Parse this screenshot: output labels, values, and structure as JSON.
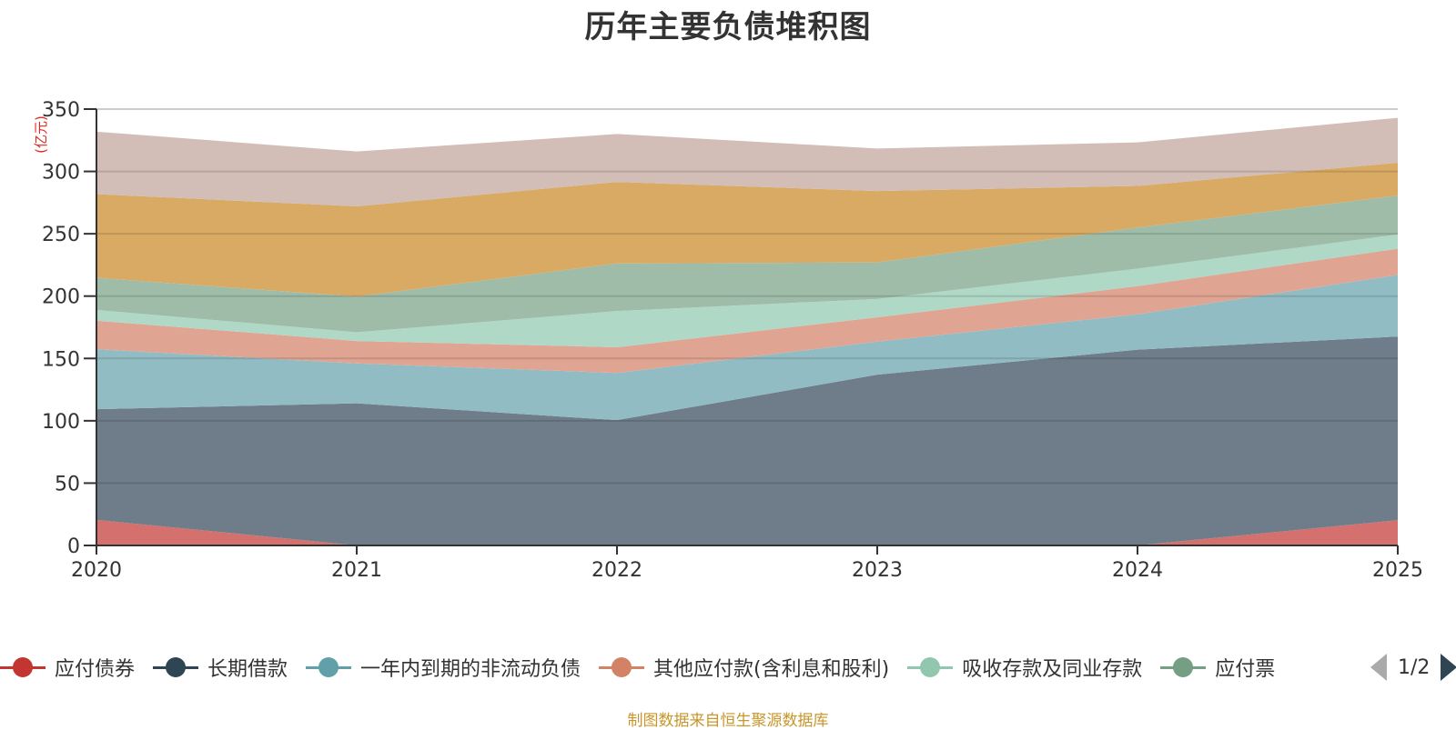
{
  "title": "历年主要负债堆积图",
  "source_note": "制图数据来自恒生聚源数据库",
  "legend_pager": {
    "text": "1/2",
    "prev_icon": "triangle-left-icon",
    "next_icon": "triangle-right-icon"
  },
  "chart_data": {
    "type": "area",
    "stacked": true,
    "title": "历年主要负债堆积图",
    "xlabel": "",
    "ylabel": "(亿元)",
    "categories": [
      "2020",
      "2021",
      "2022",
      "2023",
      "2024",
      "2025"
    ],
    "y_ticks": [
      "0",
      "50",
      "100",
      "150",
      "200",
      "250",
      "300",
      "350"
    ],
    "ylim": [
      0,
      350
    ],
    "grid": true,
    "legend_position": "bottom",
    "legend_page": "1/2",
    "series": [
      {
        "name": "应付债券",
        "color": "#c23531",
        "fill": "#d4706e",
        "legend_visible": true,
        "values": [
          20.5,
          0,
          0,
          0,
          0,
          20.3
        ]
      },
      {
        "name": "长期借款",
        "color": "#2f4554",
        "fill": "#6e7d89",
        "legend_visible": true,
        "values": [
          88.8,
          114.0,
          100.5,
          137.0,
          157.0,
          147.3
        ]
      },
      {
        "name": "一年内到期的非流动负债",
        "color": "#61a0a8",
        "fill": "#92bcc3",
        "legend_visible": true,
        "values": [
          48.1,
          32.0,
          37.9,
          26.5,
          28.4,
          49.4
        ]
      },
      {
        "name": "其他应付款(含利息和股利)",
        "color": "#d48265",
        "fill": "#e0a592",
        "legend_visible": true,
        "values": [
          22.9,
          18.0,
          20.6,
          19.5,
          22.6,
          21.0
        ]
      },
      {
        "name": "吸收存款及同业存款",
        "color": "#91c7ae",
        "fill": "#b0d8c7",
        "legend_visible": true,
        "values": [
          8.6,
          7.0,
          29.0,
          14.7,
          14.0,
          11.4
        ]
      },
      {
        "name": "应付票",
        "color": "#749f83",
        "fill": "#9fbca9",
        "legend_visible": true,
        "values": [
          25.8,
          28.6,
          38.2,
          29.3,
          33.0,
          31.2
        ]
      },
      {
        "name": "",
        "color": "#ca8622",
        "fill": "#d9aa63",
        "legend_visible": false,
        "values": [
          67.1,
          72.4,
          65.4,
          57.3,
          33.4,
          26.4
        ]
      },
      {
        "name": "",
        "color": "#bda29a",
        "fill": "#d2bdb7",
        "legend_visible": false,
        "values": [
          50.1,
          44.0,
          38.4,
          34.1,
          34.9,
          36.0
        ]
      }
    ]
  }
}
